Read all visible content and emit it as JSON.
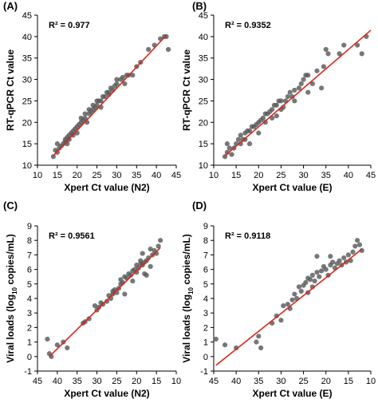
{
  "colors": {
    "point": "#595959",
    "fit_line": "#d9261c",
    "axis": "#000000"
  },
  "chart_data": [
    {
      "panel": "(A)",
      "type": "scatter",
      "xlabel": "Xpert Ct value (N2)",
      "ylabel": "RT-qPCR Ct value",
      "annotation": "R² = 0.977",
      "xlim": [
        10,
        45
      ],
      "ylim": [
        10,
        45
      ],
      "xticks": [
        10,
        15,
        20,
        25,
        30,
        35,
        40,
        45
      ],
      "yticks": [
        10,
        15,
        20,
        25,
        30,
        35,
        40,
        45
      ],
      "trendline": [
        [
          14,
          12.2
        ],
        [
          42.5,
          40.3
        ]
      ],
      "points": [
        [
          14,
          12
        ],
        [
          14.5,
          13.5
        ],
        [
          15,
          13
        ],
        [
          15.5,
          14
        ],
        [
          15,
          15
        ],
        [
          16,
          14.5
        ],
        [
          16.5,
          15
        ],
        [
          17,
          16
        ],
        [
          17,
          15.5
        ],
        [
          17.5,
          15
        ],
        [
          17.5,
          16.5
        ],
        [
          18,
          16
        ],
        [
          18,
          17
        ],
        [
          18.5,
          17.5
        ],
        [
          19,
          17
        ],
        [
          19,
          18
        ],
        [
          19.5,
          18.5
        ],
        [
          20,
          19
        ],
        [
          20,
          17.5
        ],
        [
          20.5,
          19.5
        ],
        [
          21,
          20
        ],
        [
          21,
          21
        ],
        [
          21.5,
          20.5
        ],
        [
          22,
          21
        ],
        [
          22,
          22
        ],
        [
          22.5,
          20
        ],
        [
          23,
          22
        ],
        [
          23,
          23
        ],
        [
          23.5,
          22.5
        ],
        [
          24,
          23
        ],
        [
          24,
          24
        ],
        [
          24.5,
          23.5
        ],
        [
          25,
          25
        ],
        [
          25,
          24
        ],
        [
          25.5,
          25
        ],
        [
          26,
          25
        ],
        [
          26,
          23.5
        ],
        [
          26.5,
          26
        ],
        [
          27,
          26
        ],
        [
          27.5,
          27
        ],
        [
          28,
          26.5
        ],
        [
          28,
          27
        ],
        [
          28.5,
          28
        ],
        [
          29,
          27.5
        ],
        [
          29.5,
          28.5
        ],
        [
          30,
          29
        ],
        [
          30,
          30
        ],
        [
          31,
          30
        ],
        [
          31.5,
          30.5
        ],
        [
          32,
          29
        ],
        [
          32.5,
          31
        ],
        [
          33,
          31
        ],
        [
          34,
          31
        ],
        [
          35,
          33
        ],
        [
          36,
          34
        ],
        [
          38,
          37
        ],
        [
          39.5,
          38
        ],
        [
          41,
          39.5
        ],
        [
          42,
          40
        ],
        [
          42.5,
          40
        ],
        [
          43,
          37
        ]
      ]
    },
    {
      "panel": "(B)",
      "type": "scatter",
      "xlabel": "Xpert Ct value (E)",
      "ylabel": "RT-qPCR Ct value",
      "annotation": "R² = 0.9352",
      "xlim": [
        10,
        45
      ],
      "ylim": [
        10,
        45
      ],
      "xticks": [
        10,
        15,
        20,
        25,
        30,
        35,
        40,
        45
      ],
      "yticks": [
        10,
        15,
        20,
        25,
        30,
        35,
        40,
        45
      ],
      "trendline": [
        [
          12.5,
          12.2
        ],
        [
          45,
          41.5
        ]
      ],
      "points": [
        [
          12.5,
          12
        ],
        [
          13,
          13
        ],
        [
          13.5,
          14
        ],
        [
          13,
          15
        ],
        [
          14,
          12.5
        ],
        [
          14.5,
          14
        ],
        [
          15,
          15
        ],
        [
          15.5,
          16
        ],
        [
          16,
          15
        ],
        [
          16,
          17
        ],
        [
          16.5,
          16
        ],
        [
          17,
          17.5
        ],
        [
          17,
          16
        ],
        [
          17.5,
          18
        ],
        [
          18,
          18
        ],
        [
          18,
          15
        ],
        [
          18.5,
          19
        ],
        [
          19,
          19
        ],
        [
          19.5,
          19.5
        ],
        [
          20,
          20
        ],
        [
          20,
          17.5
        ],
        [
          20.5,
          20.5
        ],
        [
          21,
          21
        ],
        [
          21.5,
          20
        ],
        [
          21.5,
          22
        ],
        [
          22,
          22
        ],
        [
          22.5,
          22.5
        ],
        [
          23,
          23
        ],
        [
          23,
          21
        ],
        [
          23.5,
          24
        ],
        [
          24,
          24
        ],
        [
          24,
          21.5
        ],
        [
          24.5,
          25
        ],
        [
          25,
          25
        ],
        [
          25,
          23
        ],
        [
          25.5,
          23.5
        ],
        [
          26,
          25
        ],
        [
          26.5,
          26
        ],
        [
          27,
          27
        ],
        [
          27.5,
          26
        ],
        [
          28,
          27.5
        ],
        [
          28,
          25
        ],
        [
          29,
          28
        ],
        [
          29.5,
          29
        ],
        [
          30,
          30
        ],
        [
          30.5,
          31
        ],
        [
          31,
          31
        ],
        [
          31,
          27
        ],
        [
          32,
          29
        ],
        [
          33,
          32
        ],
        [
          34,
          28
        ],
        [
          34.5,
          33
        ],
        [
          35,
          37
        ],
        [
          35.5,
          36
        ],
        [
          38,
          36
        ],
        [
          39,
          38
        ],
        [
          42,
          38
        ],
        [
          43,
          36
        ],
        [
          44,
          40
        ]
      ]
    },
    {
      "panel": "(C)",
      "type": "scatter",
      "xlabel": "Xpert Ct value (N2)",
      "ylabel": "Viral loads (log10 copies/mL)",
      "ylabel_parts": {
        "pre": "Viral loads (log",
        "sub": "10",
        "post": " copies/mL)"
      },
      "annotation": "R² = 0.9561",
      "xlim": [
        45,
        10
      ],
      "ylim": [
        -1,
        9
      ],
      "xticks": [
        45,
        40,
        35,
        30,
        25,
        20,
        15,
        10
      ],
      "yticks": [
        -1,
        0,
        1,
        2,
        3,
        4,
        5,
        6,
        7,
        8,
        9
      ],
      "trendline": [
        [
          42,
          0
        ],
        [
          14,
          7.5
        ]
      ],
      "points": [
        [
          42.5,
          1.2
        ],
        [
          42,
          0.2
        ],
        [
          41.5,
          0
        ],
        [
          40,
          0.8
        ],
        [
          38.5,
          1
        ],
        [
          37.5,
          0.6
        ],
        [
          33.5,
          2.3
        ],
        [
          33,
          2.4
        ],
        [
          32,
          2.6
        ],
        [
          30.5,
          3.5
        ],
        [
          30,
          3.2
        ],
        [
          29.5,
          3.4
        ],
        [
          29,
          3.7
        ],
        [
          28.5,
          3.6
        ],
        [
          27.5,
          3.8
        ],
        [
          27,
          4.2
        ],
        [
          26.5,
          4
        ],
        [
          26,
          4.3
        ],
        [
          26,
          4.5
        ],
        [
          25.5,
          4.6
        ],
        [
          25,
          4.4
        ],
        [
          24.5,
          4.7
        ],
        [
          24,
          5
        ],
        [
          24,
          5.3
        ],
        [
          23.5,
          5.1
        ],
        [
          23,
          5.5
        ],
        [
          23,
          4.3
        ],
        [
          22.5,
          5.4
        ],
        [
          22,
          5.7
        ],
        [
          21.5,
          5.6
        ],
        [
          21,
          5.9
        ],
        [
          21,
          5.2
        ],
        [
          20.5,
          6
        ],
        [
          20,
          5.8
        ],
        [
          20,
          6.3
        ],
        [
          19.5,
          6.1
        ],
        [
          19,
          6.4
        ],
        [
          19,
          6.6
        ],
        [
          18.5,
          6.3
        ],
        [
          18,
          6.5
        ],
        [
          18,
          5.7
        ],
        [
          17.5,
          6.6
        ],
        [
          17,
          6.8
        ],
        [
          16.5,
          6.2
        ],
        [
          16,
          7
        ],
        [
          15.5,
          7.3
        ],
        [
          15,
          7.1
        ],
        [
          14.5,
          7.6
        ],
        [
          14,
          8
        ],
        [
          16.5,
          7.4
        ],
        [
          17.5,
          5.6
        ],
        [
          18.5,
          7.1
        ]
      ]
    },
    {
      "panel": "(D)",
      "type": "scatter",
      "xlabel": "Xpert Ct value (E)",
      "ylabel": "Viral loads (log10 copies/mL)",
      "ylabel_parts": {
        "pre": "Viral loads (log",
        "sub": "10",
        "post": " copies/mL)"
      },
      "annotation": "R² = 0.9118",
      "xlim": [
        45,
        10
      ],
      "ylim": [
        -1,
        9
      ],
      "xticks": [
        45,
        40,
        35,
        30,
        25,
        20,
        15,
        10
      ],
      "yticks": [
        -1,
        0,
        1,
        2,
        3,
        4,
        5,
        6,
        7,
        8,
        9
      ],
      "trendline": [
        [
          44.5,
          -0.6
        ],
        [
          12,
          7.4
        ]
      ],
      "points": [
        [
          44.5,
          1.2
        ],
        [
          42.5,
          0.8
        ],
        [
          40,
          0.6
        ],
        [
          35.5,
          1
        ],
        [
          35,
          1.4
        ],
        [
          34.5,
          0.6
        ],
        [
          32,
          2.3
        ],
        [
          31,
          2.8
        ],
        [
          30,
          2.5
        ],
        [
          29.5,
          3.5
        ],
        [
          28.5,
          3.6
        ],
        [
          28,
          3.3
        ],
        [
          27.5,
          3.9
        ],
        [
          27,
          4.3
        ],
        [
          26.5,
          4
        ],
        [
          26,
          4.8
        ],
        [
          25.5,
          4.5
        ],
        [
          25,
          4.9
        ],
        [
          24.5,
          5.1
        ],
        [
          24,
          5.4
        ],
        [
          24,
          4.4
        ],
        [
          23.5,
          5.3
        ],
        [
          23,
          5.6
        ],
        [
          22.5,
          5.2
        ],
        [
          22,
          5.8
        ],
        [
          22,
          6.9
        ],
        [
          21.5,
          5.5
        ],
        [
          21,
          5.9
        ],
        [
          20.5,
          6.2
        ],
        [
          20,
          6
        ],
        [
          19.5,
          5.6
        ],
        [
          19,
          6.3
        ],
        [
          18.5,
          6.5
        ],
        [
          18,
          6.1
        ],
        [
          17.5,
          6.4
        ],
        [
          17,
          6.6
        ],
        [
          16.5,
          6.3
        ],
        [
          16,
          6.8
        ],
        [
          15.5,
          6.5
        ],
        [
          15,
          7
        ],
        [
          14.5,
          6.6
        ],
        [
          14,
          7.2
        ],
        [
          13.5,
          7.6
        ],
        [
          13,
          8
        ],
        [
          12.5,
          7.7
        ],
        [
          12,
          7.3
        ],
        [
          19,
          6.9
        ],
        [
          23,
          4.8
        ]
      ]
    }
  ]
}
